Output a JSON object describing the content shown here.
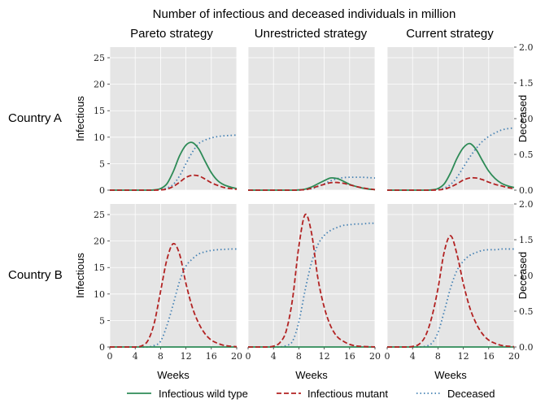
{
  "figure": {
    "title": "Number of infectious and deceased individuals in million",
    "columns": [
      "Pareto strategy",
      "Unrestricted strategy",
      "Current strategy"
    ],
    "rows": [
      "Country A",
      "Country B"
    ],
    "xlabel": "Weeks",
    "ylabel_left": "Infectious",
    "ylabel_right": "Deceased",
    "legend": [
      "Infectious wild type",
      "Infectious mutant",
      "Deceased"
    ],
    "colors": {
      "wild": "#2e8b57",
      "mutant": "#b22222",
      "deceased": "#4682b4",
      "panel_bg": "#e5e5e5",
      "grid": "#ffffff"
    }
  },
  "chart_data": {
    "type": "line",
    "xlim": [
      0,
      20
    ],
    "xticks": [
      0,
      4,
      8,
      12,
      16,
      20
    ],
    "ylim_left": [
      0,
      27
    ],
    "yticks_left": [
      0,
      5,
      10,
      15,
      20,
      25
    ],
    "ylim_right": [
      0,
      2.0
    ],
    "yticks_right": [
      "0.0",
      "0.5",
      "1.0",
      "1.5",
      "2.0"
    ],
    "legend_position": "bottom",
    "grid": true,
    "x": [
      0,
      1,
      2,
      3,
      4,
      5,
      6,
      7,
      8,
      9,
      10,
      11,
      12,
      13,
      14,
      15,
      16,
      17,
      18,
      19,
      20
    ],
    "panels": [
      {
        "row": "Country A",
        "column": "Pareto strategy",
        "wild": [
          0,
          0,
          0,
          0,
          0,
          0,
          0,
          0.05,
          0.3,
          1.2,
          3.5,
          6.5,
          8.5,
          9,
          7.8,
          5.5,
          3.3,
          1.8,
          1,
          0.6,
          0.3
        ],
        "mutant": [
          0,
          0,
          0,
          0,
          0,
          0,
          0,
          0,
          0.05,
          0.2,
          0.7,
          1.5,
          2.4,
          2.8,
          2.7,
          2.1,
          1.4,
          0.9,
          0.5,
          0.3,
          0.15
        ],
        "deceased": [
          0,
          0,
          0,
          0,
          0,
          0,
          0,
          0,
          0.01,
          0.03,
          0.08,
          0.2,
          0.37,
          0.53,
          0.65,
          0.7,
          0.73,
          0.75,
          0.76,
          0.765,
          0.77
        ]
      },
      {
        "row": "Country A",
        "column": "Unrestricted strategy",
        "wild": [
          0,
          0,
          0,
          0,
          0,
          0,
          0,
          0,
          0.05,
          0.2,
          0.6,
          1.2,
          1.8,
          2.3,
          2.2,
          1.7,
          1.1,
          0.7,
          0.4,
          0.2,
          0.1
        ],
        "mutant": [
          0,
          0,
          0,
          0,
          0,
          0,
          0,
          0,
          0.03,
          0.1,
          0.35,
          0.75,
          1.1,
          1.4,
          1.45,
          1.3,
          1,
          0.7,
          0.45,
          0.25,
          0.1
        ],
        "deceased": [
          0,
          0,
          0,
          0,
          0,
          0,
          0,
          0,
          0,
          0.01,
          0.02,
          0.05,
          0.09,
          0.13,
          0.16,
          0.175,
          0.18,
          0.18,
          0.18,
          0.175,
          0.17
        ]
      },
      {
        "row": "Country A",
        "column": "Current strategy",
        "wild": [
          0,
          0,
          0,
          0,
          0,
          0,
          0,
          0.05,
          0.3,
          1.2,
          3.3,
          6,
          8,
          8.8,
          7.7,
          5.6,
          3.6,
          2.2,
          1.3,
          0.8,
          0.5
        ],
        "mutant": [
          0,
          0,
          0,
          0,
          0,
          0,
          0,
          0,
          0.05,
          0.2,
          0.6,
          1.2,
          1.9,
          2.3,
          2.3,
          2,
          1.5,
          1.1,
          0.8,
          0.5,
          0.3
        ],
        "deceased": [
          0,
          0,
          0,
          0,
          0,
          0,
          0,
          0,
          0.01,
          0.03,
          0.08,
          0.18,
          0.32,
          0.46,
          0.58,
          0.68,
          0.75,
          0.8,
          0.84,
          0.86,
          0.87
        ]
      },
      {
        "row": "Country B",
        "column": "Pareto strategy",
        "wild": [
          0,
          0,
          0,
          0,
          0,
          0,
          0,
          0,
          0,
          0,
          0,
          0,
          0,
          0,
          0,
          0,
          0,
          0,
          0,
          0,
          0
        ],
        "mutant": [
          0,
          0,
          0,
          0,
          0,
          0.2,
          1.2,
          4.5,
          10.5,
          16.5,
          19.5,
          17.5,
          12,
          7.5,
          4.5,
          2.5,
          1.3,
          0.7,
          0.3,
          0.15,
          0.05
        ],
        "deceased": [
          0,
          0,
          0,
          0,
          0,
          0,
          0,
          0.02,
          0.08,
          0.3,
          0.6,
          0.92,
          1.13,
          1.23,
          1.3,
          1.33,
          1.35,
          1.36,
          1.365,
          1.37,
          1.37
        ]
      },
      {
        "row": "Country B",
        "column": "Unrestricted strategy",
        "wild": [
          0,
          0,
          0,
          0,
          0,
          0,
          0,
          0,
          0,
          0,
          0,
          0,
          0,
          0,
          0,
          0,
          0,
          0,
          0,
          0,
          0
        ],
        "mutant": [
          0,
          0,
          0,
          0,
          0.15,
          0.8,
          3,
          9,
          19,
          25,
          21.5,
          13,
          7.5,
          4,
          2,
          1.1,
          0.5,
          0.2,
          0.1,
          0.05,
          0.02
        ],
        "deceased": [
          0,
          0,
          0,
          0,
          0,
          0,
          0.02,
          0.08,
          0.35,
          0.8,
          1.18,
          1.43,
          1.56,
          1.63,
          1.67,
          1.7,
          1.71,
          1.72,
          1.72,
          1.73,
          1.73
        ]
      },
      {
        "row": "Country B",
        "column": "Current strategy",
        "wild": [
          0,
          0,
          0,
          0,
          0,
          0,
          0,
          0,
          0,
          0,
          0,
          0,
          0,
          0,
          0,
          0,
          0,
          0,
          0,
          0,
          0
        ],
        "mutant": [
          0,
          0,
          0,
          0,
          0.1,
          0.5,
          2,
          5.5,
          11,
          18,
          21,
          17.5,
          12,
          7.5,
          4.5,
          2.5,
          1.3,
          0.7,
          0.3,
          0.15,
          0.05
        ],
        "deceased": [
          0,
          0,
          0,
          0,
          0,
          0,
          0.01,
          0.05,
          0.2,
          0.5,
          0.83,
          1.07,
          1.2,
          1.28,
          1.32,
          1.35,
          1.36,
          1.36,
          1.37,
          1.37,
          1.37
        ]
      }
    ]
  }
}
